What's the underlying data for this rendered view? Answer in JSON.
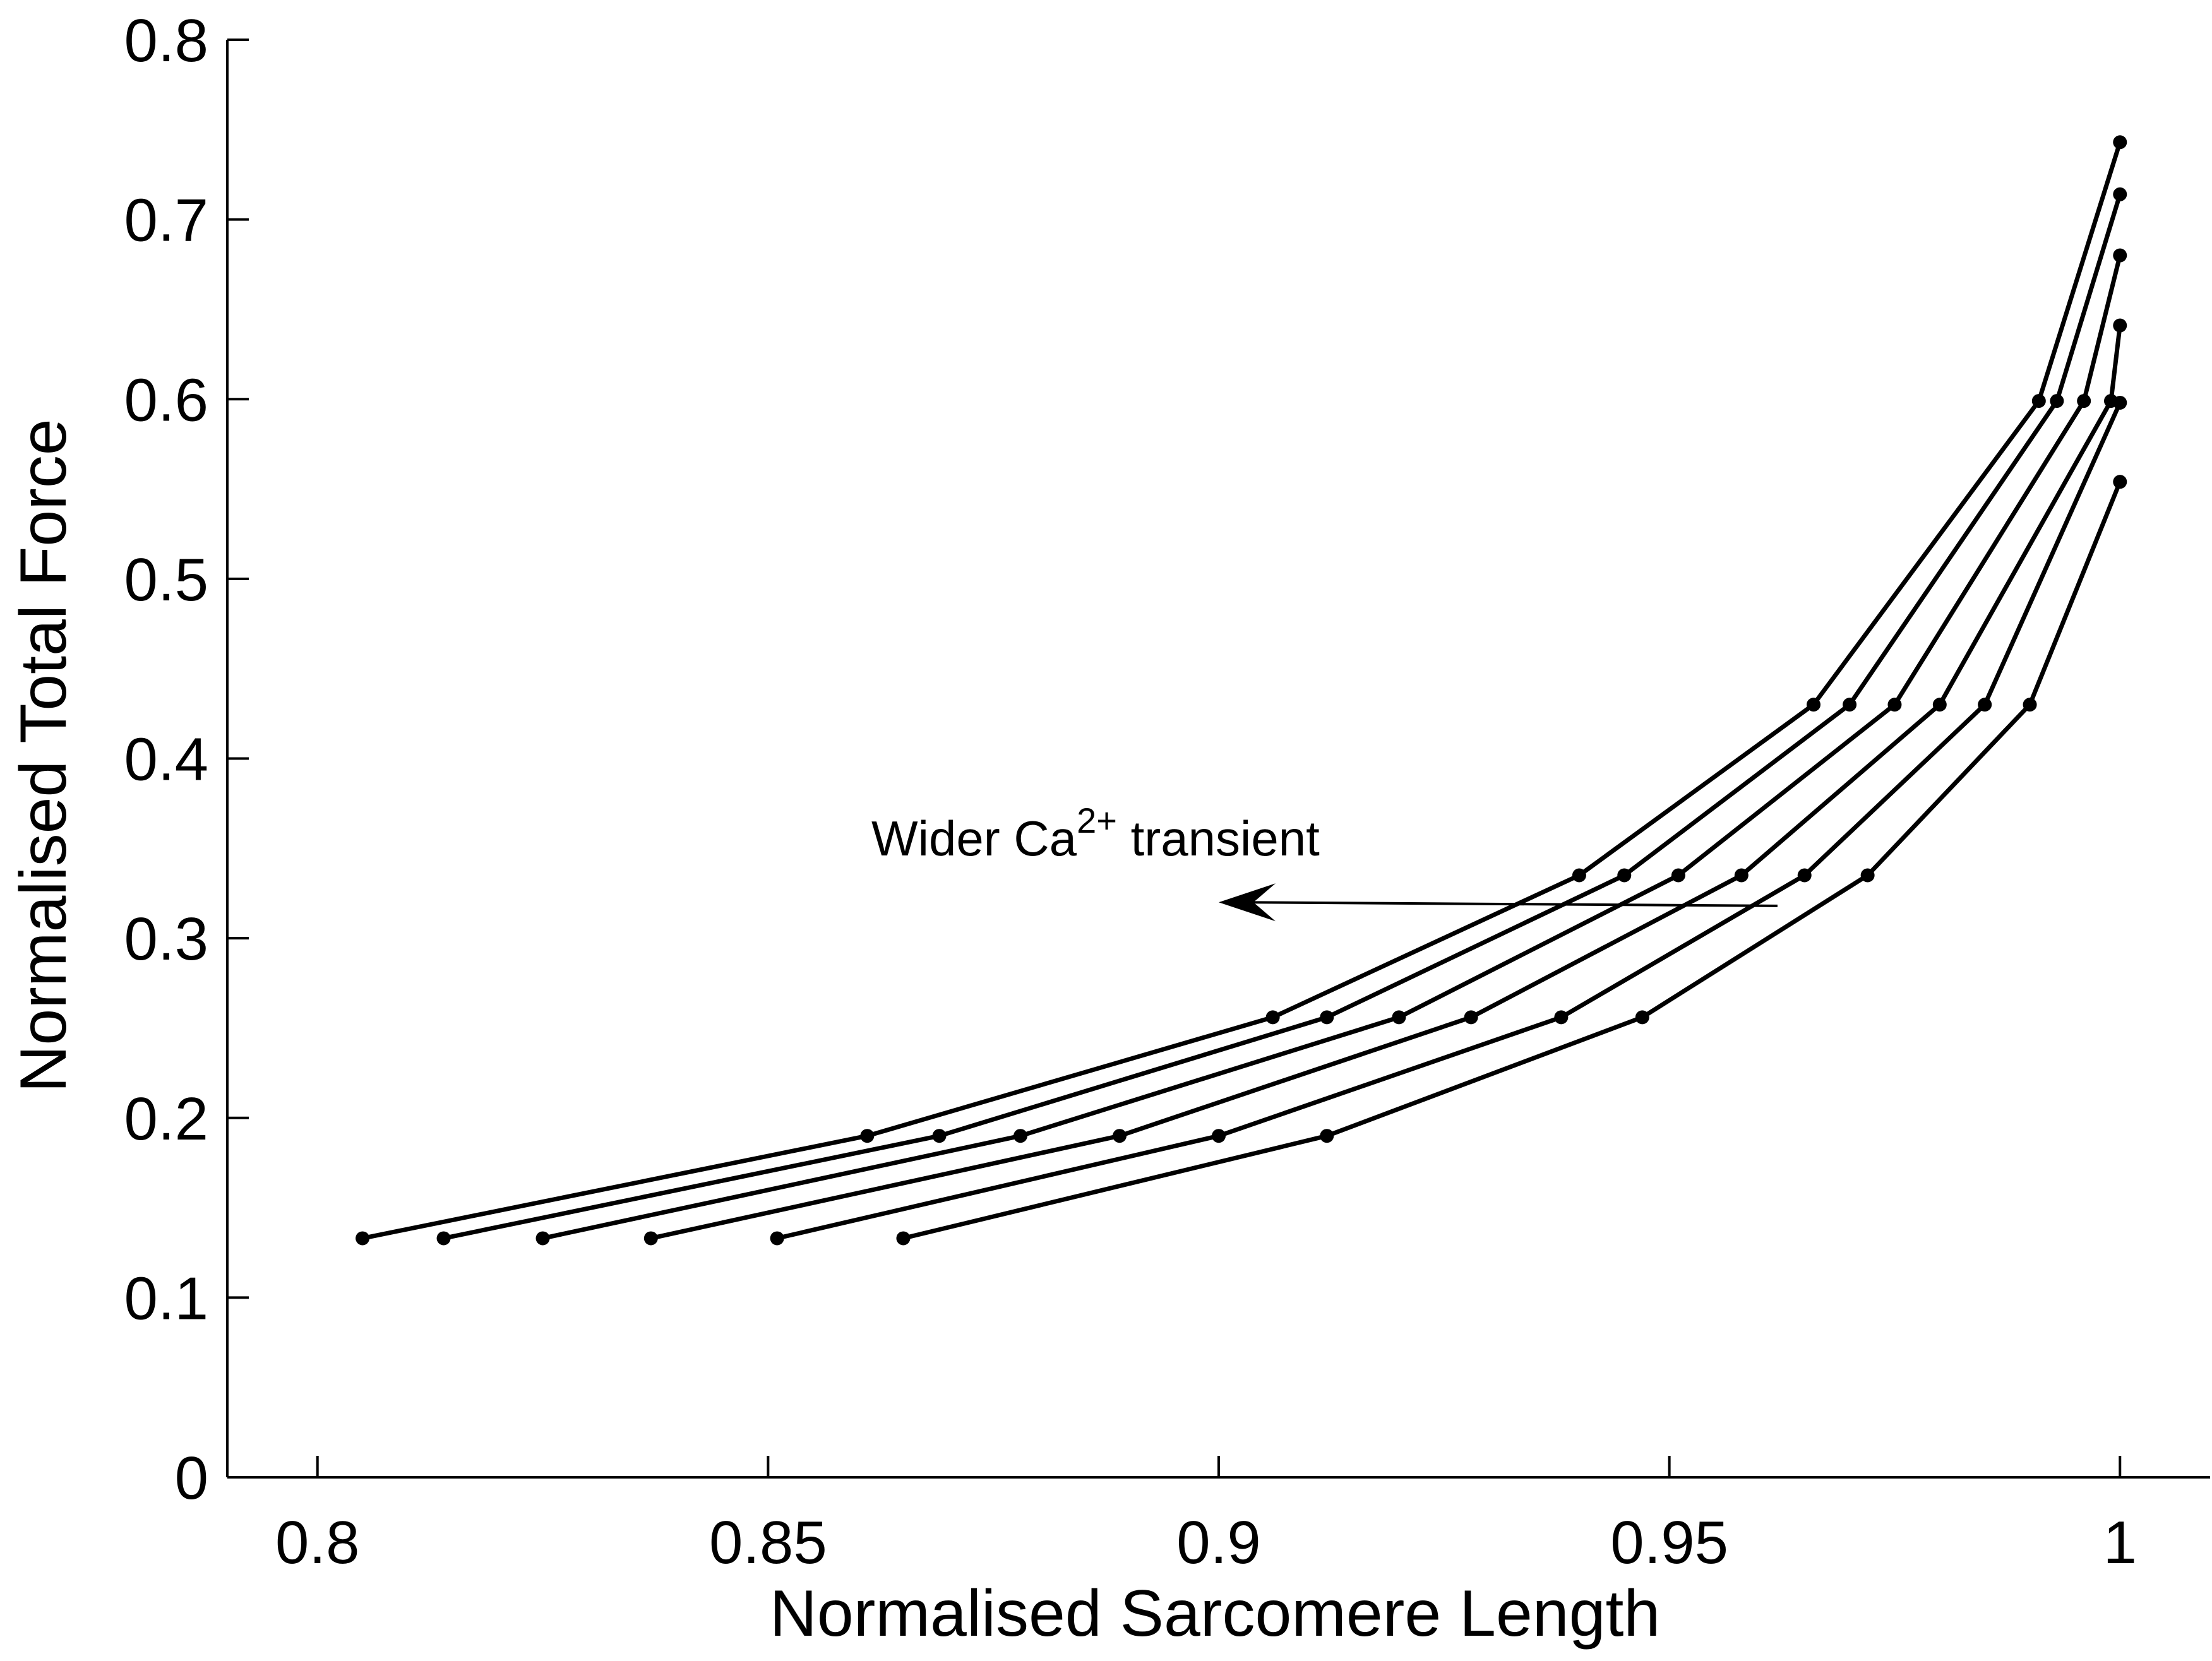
{
  "chart_data": {
    "type": "line",
    "title": "",
    "xlabel": "Normalised Sarcomere Length",
    "ylabel": "Normalised Total Force",
    "xlim": [
      0.79,
      1.01
    ],
    "ylim": [
      0,
      0.8
    ],
    "x_ticks": [
      0.8,
      0.85,
      0.9,
      0.95,
      1
    ],
    "x_tick_labels": [
      "0.8",
      "0.85",
      "0.9",
      "0.95",
      "1"
    ],
    "y_ticks": [
      0,
      0.1,
      0.2,
      0.3,
      0.4,
      0.5,
      0.6,
      0.7,
      0.8
    ],
    "y_tick_labels": [
      "0",
      "0.1",
      "0.2",
      "0.3",
      "0.4",
      "0.5",
      "0.6",
      "0.7",
      "0.8"
    ],
    "grid": false,
    "legend": "none",
    "line_color": "#000000",
    "series": [
      {
        "x": [
          0.805,
          0.861,
          0.906,
          0.94,
          0.966,
          0.991,
          1.0
        ],
        "y": [
          0.133,
          0.19,
          0.256,
          0.335,
          0.43,
          0.599,
          0.743
        ]
      },
      {
        "x": [
          0.814,
          0.869,
          0.912,
          0.945,
          0.97,
          0.993,
          1.0
        ],
        "y": [
          0.133,
          0.19,
          0.256,
          0.335,
          0.43,
          0.599,
          0.714
        ]
      },
      {
        "x": [
          0.825,
          0.878,
          0.92,
          0.951,
          0.975,
          0.996,
          1.0
        ],
        "y": [
          0.133,
          0.19,
          0.256,
          0.335,
          0.43,
          0.599,
          0.68
        ]
      },
      {
        "x": [
          0.837,
          0.889,
          0.928,
          0.958,
          0.98,
          0.999,
          1.0
        ],
        "y": [
          0.133,
          0.19,
          0.256,
          0.335,
          0.43,
          0.599,
          0.641
        ]
      },
      {
        "x": [
          0.851,
          0.9,
          0.938,
          0.965,
          0.985,
          1.0
        ],
        "y": [
          0.133,
          0.19,
          0.256,
          0.335,
          0.43,
          0.598
        ]
      },
      {
        "x": [
          0.865,
          0.912,
          0.947,
          0.972,
          0.99,
          1.0
        ],
        "y": [
          0.133,
          0.19,
          0.256,
          0.335,
          0.43,
          0.554
        ]
      }
    ],
    "annotation": {
      "text": "Wider Ca",
      "superscript": "2+",
      "text_after": " transient",
      "arrow_from": [
        0.962,
        0.318
      ],
      "arrow_to": [
        0.9,
        0.32
      ]
    }
  }
}
